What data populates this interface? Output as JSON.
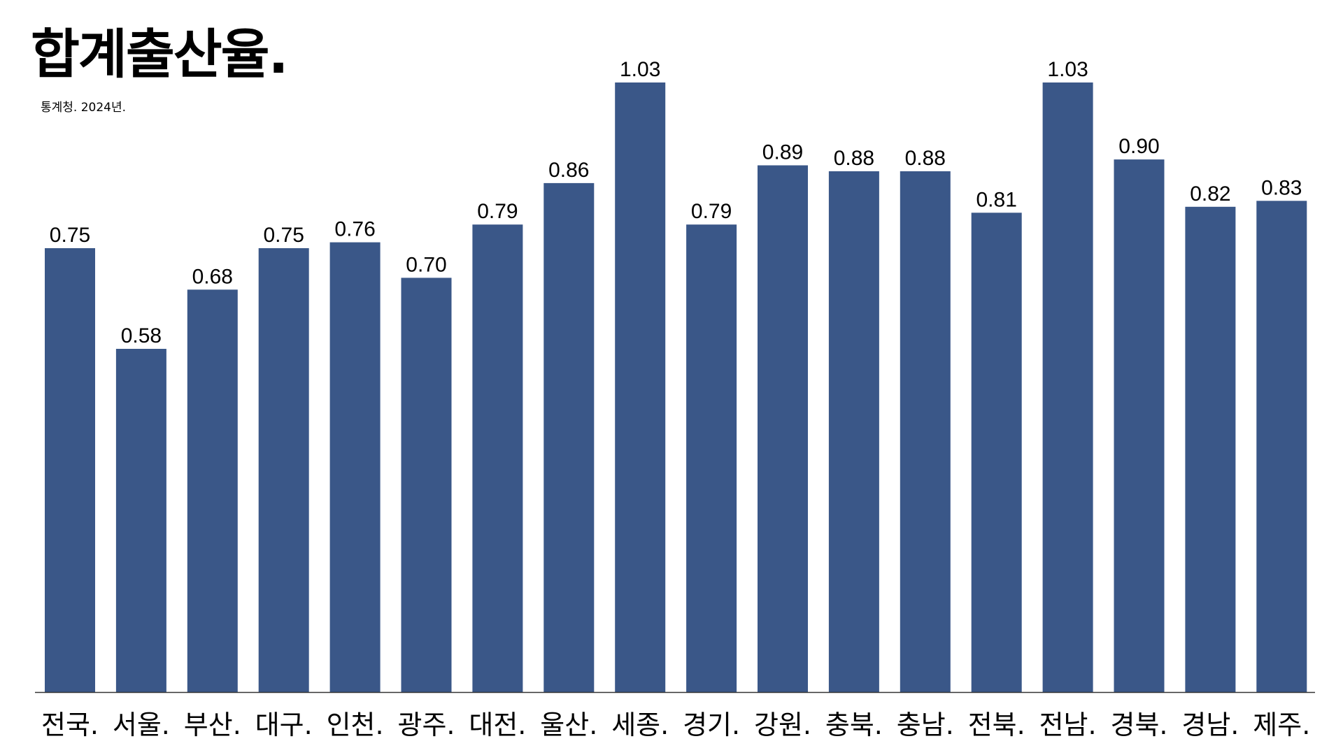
{
  "chart_data": {
    "type": "bar",
    "title": "합계출산율.",
    "subtitle": "통계청. 2024년.",
    "categories": [
      "전국.",
      "서울.",
      "부산.",
      "대구.",
      "인천.",
      "광주.",
      "대전.",
      "울산.",
      "세종.",
      "경기.",
      "강원.",
      "충북.",
      "충남.",
      "전북.",
      "전남.",
      "경북.",
      "경남.",
      "제주."
    ],
    "values": [
      0.75,
      0.58,
      0.68,
      0.75,
      0.76,
      0.7,
      0.79,
      0.86,
      1.03,
      0.79,
      0.89,
      0.88,
      0.88,
      0.81,
      1.03,
      0.9,
      0.82,
      0.83
    ],
    "value_labels": [
      "0.75",
      "0.58",
      "0.68",
      "0.75",
      "0.76",
      "0.70",
      "0.79",
      "0.86",
      "1.03",
      "0.79",
      "0.89",
      "0.88",
      "0.88",
      "0.81",
      "1.03",
      "0.90",
      "0.82",
      "0.83"
    ],
    "xlabel": "",
    "ylabel": "",
    "ylim": [
      0,
      1.03
    ],
    "grid": false,
    "legend": "none",
    "bar_color": "#3a5788",
    "axis_color": "#333333"
  }
}
